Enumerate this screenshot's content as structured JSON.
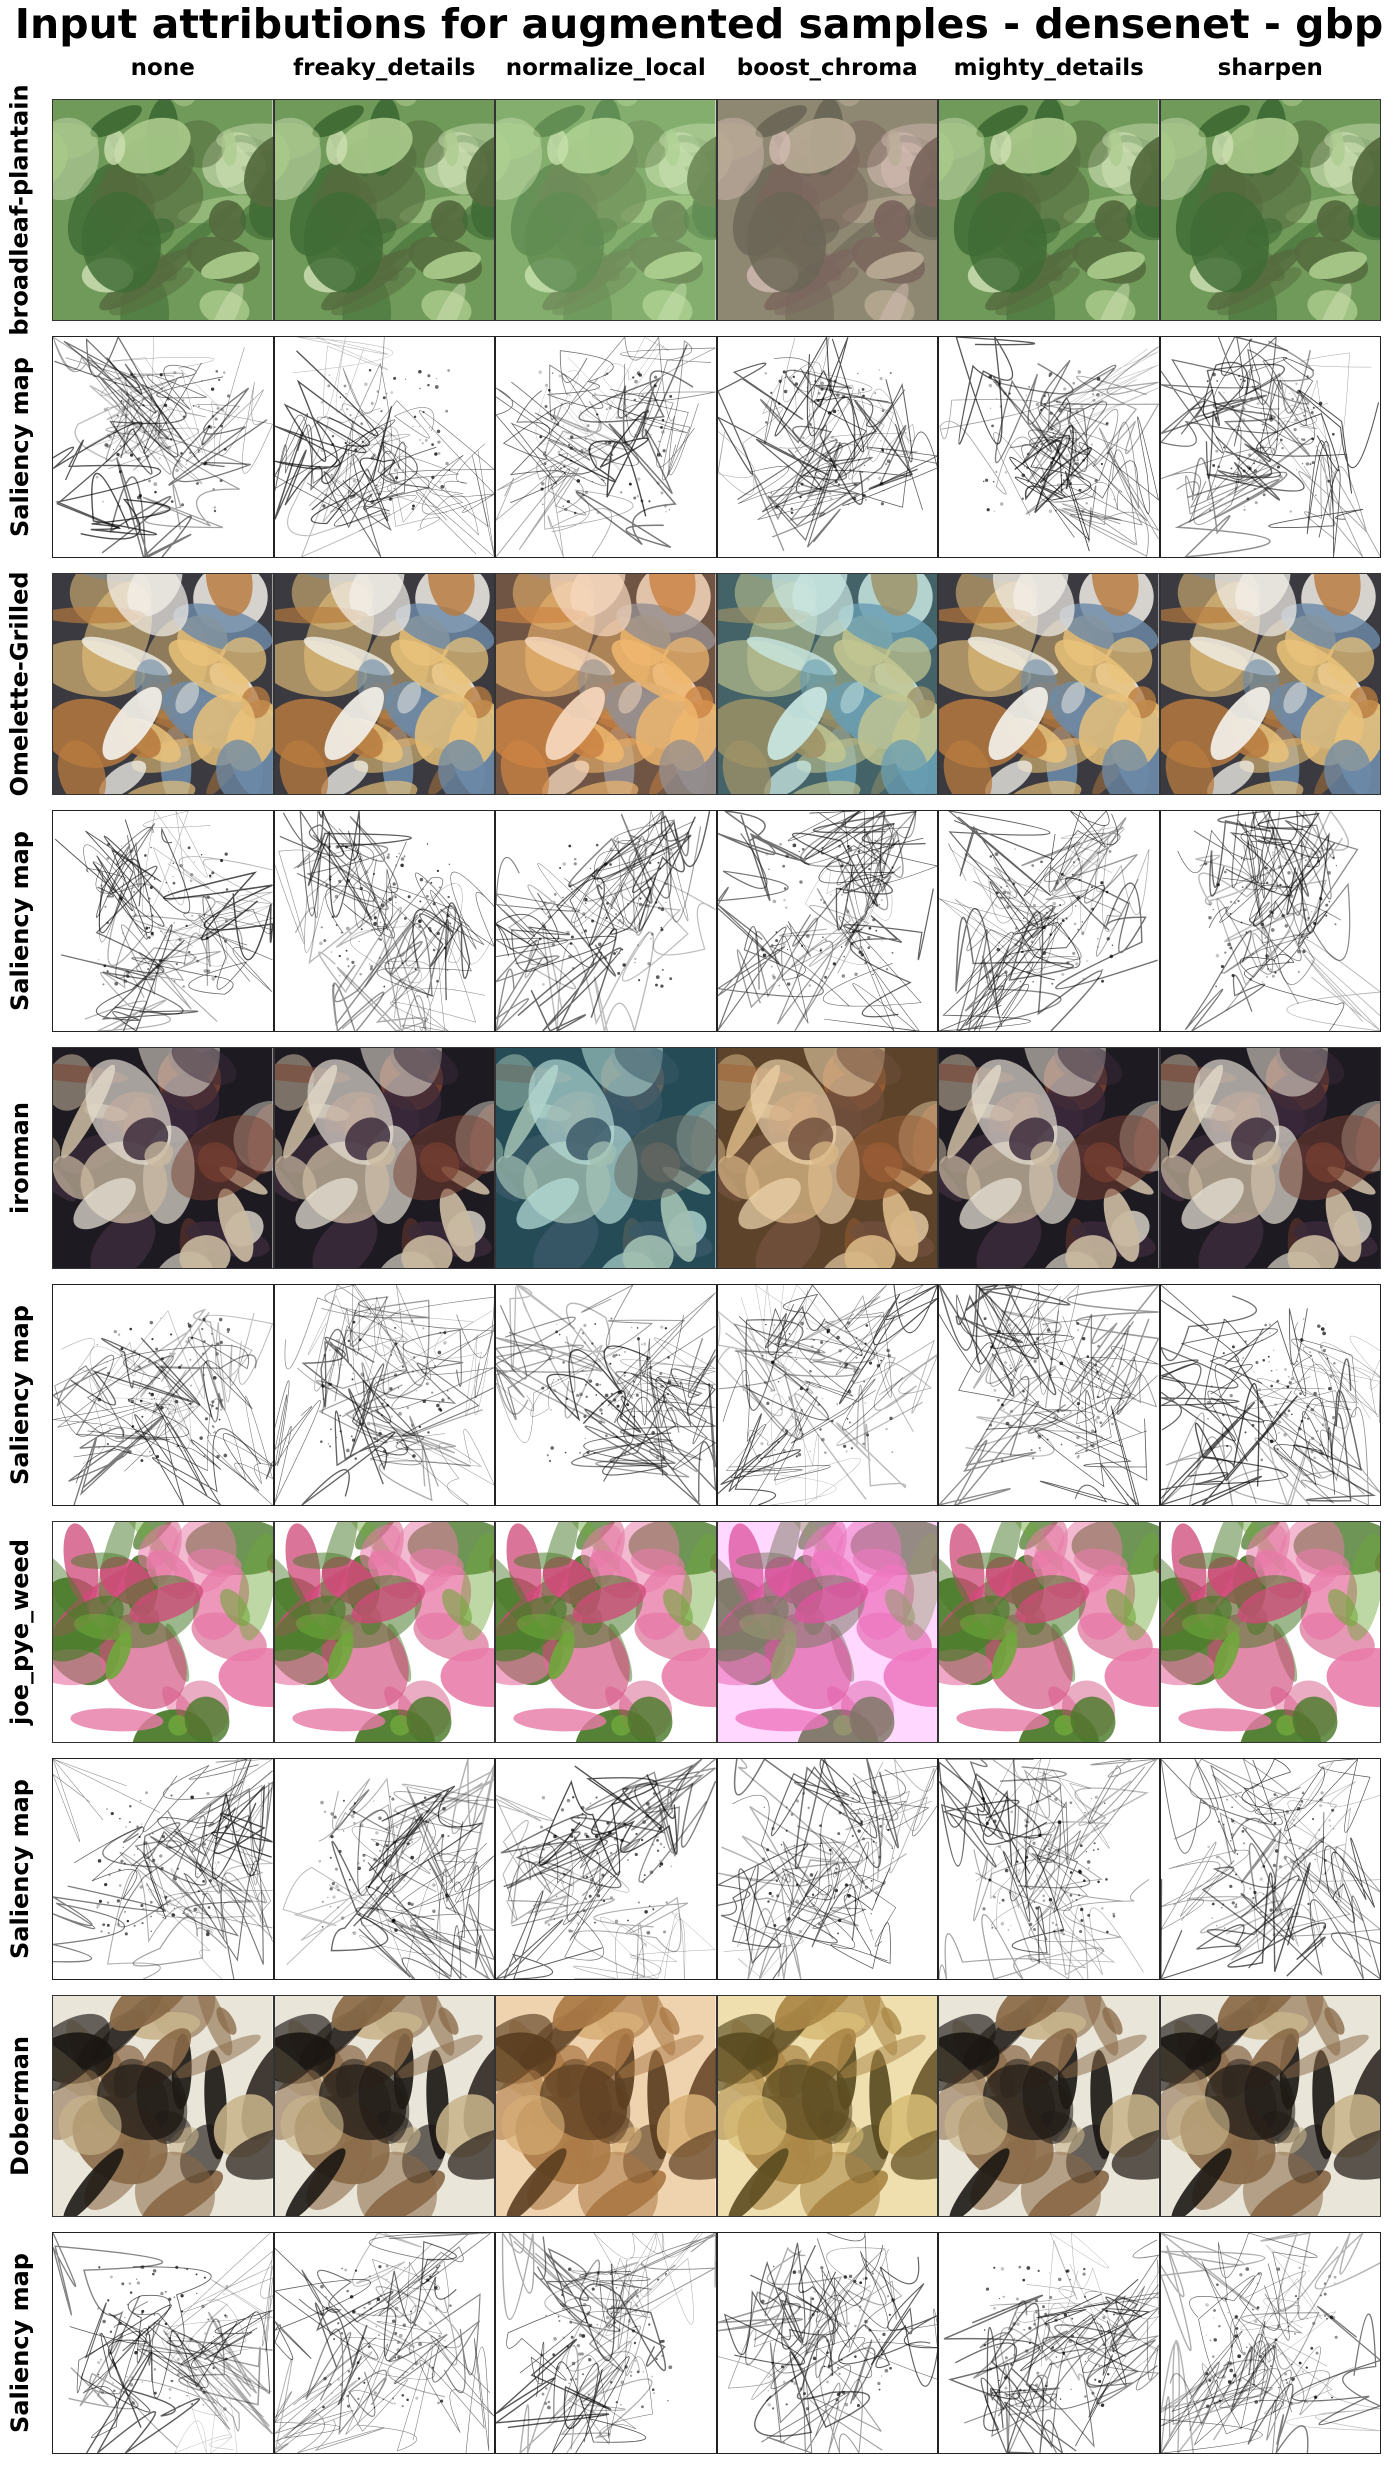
{
  "title": "Input attributions for augmented samples - densenet - gbp",
  "columns": [
    "none",
    "freaky_details",
    "normalize_local",
    "boost_chroma",
    "mighty_details",
    "sharpen"
  ],
  "rows": [
    {
      "label": "broadleaf-plantain",
      "kind": "image",
      "icon": "plantain-leaves-photo",
      "palette": [
        "#6f9a5a",
        "#a9c98a",
        "#3e6b34",
        "#cfe0b4",
        "#556b3e"
      ],
      "tints": [
        "none",
        "none",
        "#b7e3a0",
        "#e05ab0",
        "none",
        "none"
      ]
    },
    {
      "label": "Saliency map",
      "kind": "saliency",
      "icon": "saliency-heatmap"
    },
    {
      "label": "Omelette-Grilled",
      "kind": "image",
      "icon": "omelette-bread-photo",
      "palette": [
        "#3a3a40",
        "#e9c27a",
        "#b77a3e",
        "#f2efe8",
        "#6c8aa8"
      ],
      "tints": [
        "none",
        "none",
        "#ff9a50",
        "#5fd0d0",
        "none",
        "none"
      ]
    },
    {
      "label": "Saliency map",
      "kind": "saliency",
      "icon": "saliency-heatmap"
    },
    {
      "label": "ironman",
      "kind": "image",
      "icon": "ironman-suit-photo",
      "palette": [
        "#1e1a22",
        "#c9b9a0",
        "#7a4030",
        "#e8e2d6",
        "#3a2a3a"
      ],
      "tints": [
        "none",
        "none",
        "#3bd0e0",
        "#ffb040",
        "none",
        "none"
      ]
    },
    {
      "label": "Saliency map",
      "kind": "saliency",
      "icon": "saliency-heatmap"
    },
    {
      "label": "joe_pye_weed",
      "kind": "image",
      "icon": "clover-flowers-photo",
      "palette": [
        "#ffffff",
        "#d04a7a",
        "#6fa83a",
        "#e87aa8",
        "#4a7a2a"
      ],
      "tints": [
        "none",
        "none",
        "none",
        "#ff70ff",
        "none",
        "none"
      ]
    },
    {
      "label": "Saliency map",
      "kind": "saliency",
      "icon": "saliency-heatmap"
    },
    {
      "label": "Doberman",
      "kind": "image",
      "icon": "doberman-dog-photo",
      "palette": [
        "#e9e5d8",
        "#2a221c",
        "#8a6a48",
        "#c8b48a",
        "#1a1612"
      ],
      "tints": [
        "none",
        "none",
        "#ffa040",
        "#ffd040",
        "none",
        "none"
      ]
    },
    {
      "label": "Saliency map",
      "kind": "saliency",
      "icon": "saliency-heatmap"
    }
  ]
}
